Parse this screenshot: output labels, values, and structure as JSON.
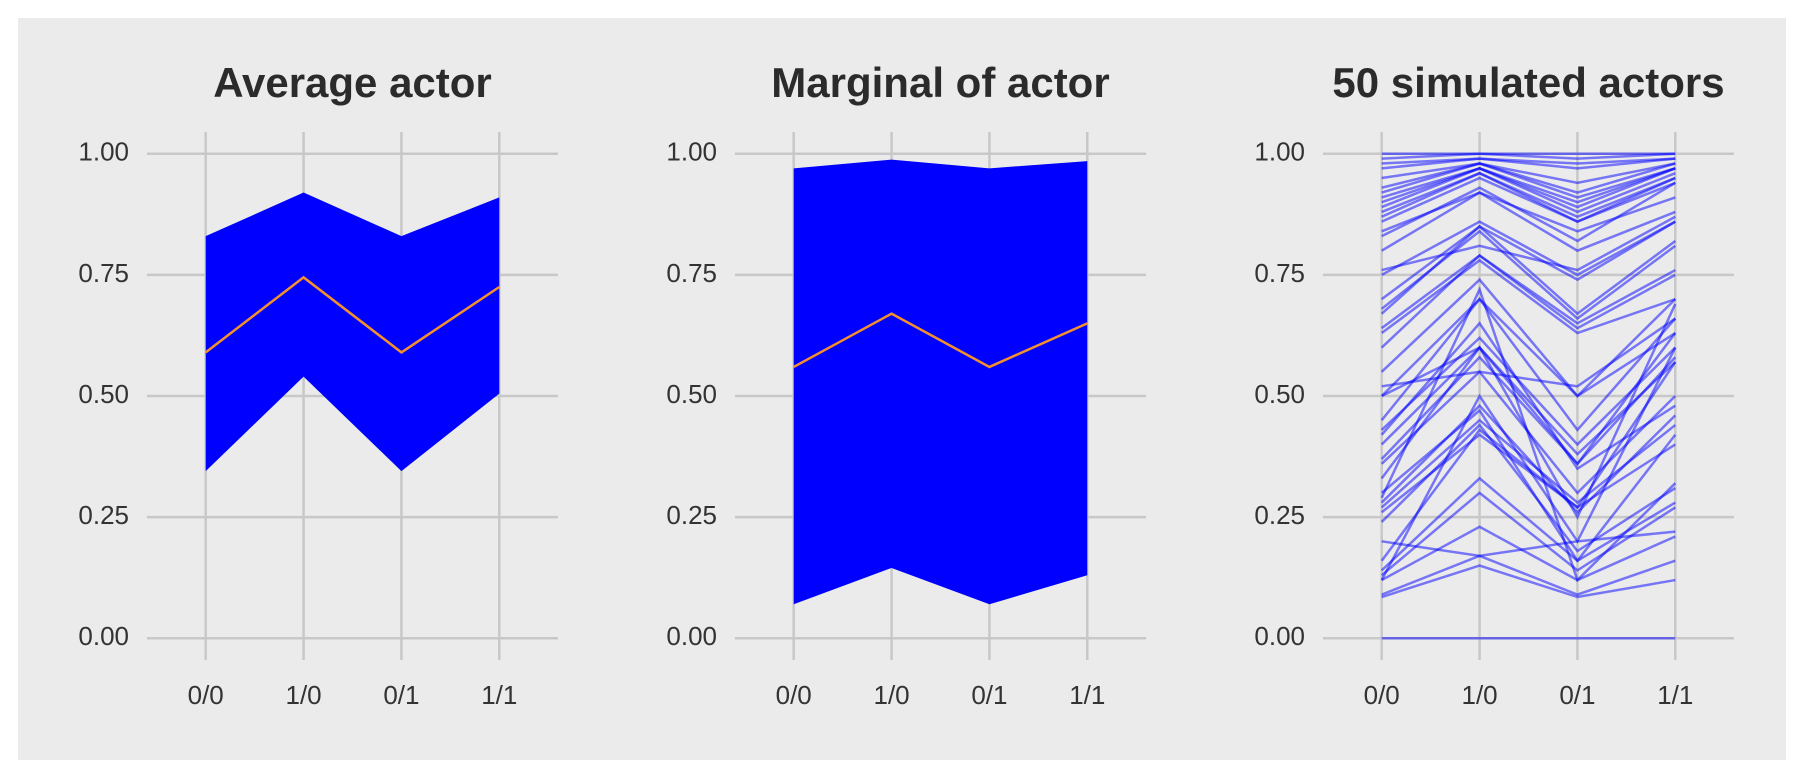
{
  "chart_data": [
    {
      "type": "band",
      "title": "Average actor",
      "categories": [
        "0/0",
        "1/0",
        "0/1",
        "1/1"
      ],
      "values": [
        0.59,
        0.745,
        0.59,
        0.725
      ],
      "lower": [
        0.345,
        0.54,
        0.345,
        0.505
      ],
      "upper": [
        0.83,
        0.92,
        0.83,
        0.91
      ],
      "band_color": "#0000ff",
      "color": "#f4902c",
      "ylim": [
        -0.045,
        1.045
      ],
      "yticks": [
        {
          "value": 0,
          "label": "0.00"
        },
        {
          "value": 0.25,
          "label": "0.25"
        },
        {
          "value": 0.5,
          "label": "0.50"
        },
        {
          "value": 0.75,
          "label": "0.75"
        },
        {
          "value": 1,
          "label": "1.00"
        }
      ],
      "grid": true
    },
    {
      "type": "band",
      "title": "Marginal of actor",
      "categories": [
        "0/0",
        "1/0",
        "0/1",
        "1/1"
      ],
      "values": [
        0.56,
        0.67,
        0.56,
        0.65
      ],
      "lower": [
        0.07,
        0.145,
        0.07,
        0.13
      ],
      "upper": [
        0.97,
        0.988,
        0.97,
        0.985
      ],
      "band_color": "#0000ff",
      "color": "#f4902c",
      "ylim": [
        -0.045,
        1.045
      ],
      "yticks": [
        {
          "value": 0,
          "label": "0.00"
        },
        {
          "value": 0.25,
          "label": "0.25"
        },
        {
          "value": 0.5,
          "label": "0.50"
        },
        {
          "value": 0.75,
          "label": "0.75"
        },
        {
          "value": 1,
          "label": "1.00"
        }
      ],
      "grid": true
    },
    {
      "type": "lines",
      "title": "50 simulated actors",
      "categories": [
        "0/0",
        "1/0",
        "0/1",
        "1/1"
      ],
      "color": "#0000ff",
      "alpha": 0.5,
      "series": [
        {
          "values": [
            0,
            0,
            0,
            0
          ]
        },
        {
          "values": [
            0.085,
            0.15,
            0.085,
            0.12
          ]
        },
        {
          "values": [
            0.09,
            0.17,
            0.09,
            0.16
          ]
        },
        {
          "values": [
            0.12,
            0.23,
            0.12,
            0.21
          ]
        },
        {
          "values": [
            0.13,
            0.3,
            0.14,
            0.27
          ]
        },
        {
          "values": [
            0.14,
            0.33,
            0.16,
            0.28
          ]
        },
        {
          "values": [
            0.2,
            0.17,
            0.2,
            0.22
          ]
        },
        {
          "values": [
            0.26,
            0.42,
            0.27,
            0.4
          ]
        },
        {
          "values": [
            0.27,
            0.45,
            0.28,
            0.44
          ]
        },
        {
          "values": [
            0.28,
            0.48,
            0.26,
            0.46
          ]
        },
        {
          "values": [
            0.29,
            0.72,
            0.12,
            0.32
          ]
        },
        {
          "values": [
            0.36,
            0.55,
            0.3,
            0.5
          ]
        },
        {
          "values": [
            0.37,
            0.58,
            0.36,
            0.58
          ]
        },
        {
          "values": [
            0.4,
            0.6,
            0.38,
            0.57
          ]
        },
        {
          "values": [
            0.43,
            0.62,
            0.4,
            0.6
          ]
        },
        {
          "values": [
            0.5,
            0.7,
            0.5,
            0.63
          ]
        },
        {
          "values": [
            0.5,
            0.6,
            0.36,
            0.63
          ]
        },
        {
          "values": [
            0.52,
            0.55,
            0.52,
            0.66
          ]
        },
        {
          "values": [
            0.63,
            0.78,
            0.63,
            0.7
          ]
        },
        {
          "values": [
            0.64,
            0.79,
            0.65,
            0.76
          ]
        },
        {
          "values": [
            0.67,
            0.85,
            0.67,
            0.82
          ]
        },
        {
          "values": [
            0.68,
            0.84,
            0.66,
            0.81
          ]
        },
        {
          "values": [
            0.75,
            0.86,
            0.75,
            0.86
          ]
        },
        {
          "values": [
            0.76,
            0.81,
            0.76,
            0.87
          ]
        },
        {
          "values": [
            0.8,
            0.92,
            0.8,
            0.88
          ]
        },
        {
          "values": [
            0.84,
            0.92,
            0.84,
            0.91
          ]
        },
        {
          "values": [
            0.86,
            0.95,
            0.86,
            0.94
          ]
        },
        {
          "values": [
            0.87,
            0.96,
            0.86,
            0.95
          ]
        },
        {
          "values": [
            0.88,
            0.96,
            0.87,
            0.95
          ]
        },
        {
          "values": [
            0.89,
            0.97,
            0.88,
            0.96
          ]
        },
        {
          "values": [
            0.9,
            0.97,
            0.9,
            0.97
          ]
        },
        {
          "values": [
            0.91,
            0.97,
            0.89,
            0.97
          ]
        },
        {
          "values": [
            0.92,
            0.98,
            0.91,
            0.97
          ]
        },
        {
          "values": [
            0.95,
            0.98,
            0.94,
            0.98
          ]
        },
        {
          "values": [
            0.97,
            0.99,
            0.97,
            0.99
          ]
        },
        {
          "values": [
            0.98,
            0.99,
            0.98,
            0.99
          ]
        },
        {
          "values": [
            0.99,
            1,
            0.99,
            1
          ]
        },
        {
          "values": [
            1,
            1,
            1,
            1
          ]
        },
        {
          "values": [
            0.16,
            0.43,
            0.27,
            0.57
          ]
        },
        {
          "values": [
            0.3,
            0.47,
            0.16,
            0.42
          ]
        },
        {
          "values": [
            0.33,
            0.6,
            0.25,
            0.69
          ]
        },
        {
          "values": [
            0.12,
            0.5,
            0.2,
            0.6
          ]
        },
        {
          "values": [
            0.45,
            0.7,
            0.43,
            0.66
          ]
        },
        {
          "values": [
            0.55,
            0.74,
            0.5,
            0.7
          ]
        },
        {
          "values": [
            0.6,
            0.79,
            0.64,
            0.75
          ]
        },
        {
          "values": [
            0.42,
            0.65,
            0.35,
            0.48
          ]
        },
        {
          "values": [
            0.24,
            0.44,
            0.18,
            0.31
          ]
        },
        {
          "values": [
            0.7,
            0.85,
            0.74,
            0.86
          ]
        },
        {
          "values": [
            0.83,
            0.93,
            0.82,
            0.94
          ]
        },
        {
          "values": [
            0.93,
            0.98,
            0.92,
            0.98
          ]
        }
      ],
      "ylim": [
        -0.045,
        1.045
      ],
      "yticks": [
        {
          "value": 0,
          "label": "0.00"
        },
        {
          "value": 0.25,
          "label": "0.25"
        },
        {
          "value": 0.5,
          "label": "0.50"
        },
        {
          "value": 0.75,
          "label": "0.75"
        },
        {
          "value": 1,
          "label": "1.00"
        }
      ],
      "grid": true
    }
  ]
}
